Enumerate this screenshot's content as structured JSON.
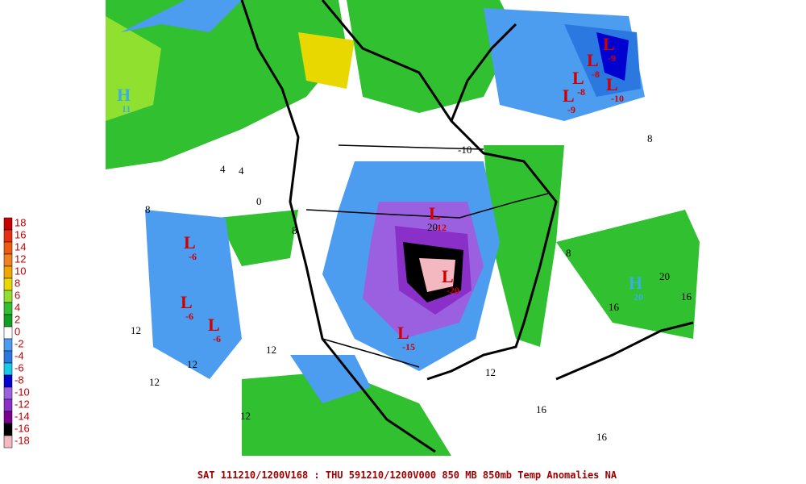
{
  "colorbar": {
    "levels": [
      18,
      16,
      14,
      12,
      10,
      8,
      6,
      4,
      2,
      0,
      -2,
      -4,
      -6,
      -8,
      -10,
      -12,
      -14,
      -16,
      -18
    ],
    "colors": [
      "#c80000",
      "#e83010",
      "#f05a10",
      "#f08020",
      "#f0a800",
      "#e8d800",
      "#90e030",
      "#30c030",
      "#10a020",
      "#ffffff",
      "#4c9cf0",
      "#2a78e0",
      "#18c8e8",
      "#0000d0",
      "#9a60e0",
      "#8a30c8",
      "#7a0090",
      "#000000",
      "#f4b8c0"
    ]
  },
  "pressure_centers": [
    {
      "symbol": "L",
      "value": -9
    },
    {
      "symbol": "L",
      "value": -8
    },
    {
      "symbol": "L",
      "value": -8
    },
    {
      "symbol": "L",
      "value": -10
    },
    {
      "symbol": "L",
      "value": -9
    },
    {
      "symbol": "L",
      "value": -6
    },
    {
      "symbol": "L",
      "value": -6
    },
    {
      "symbol": "L",
      "value": -6
    },
    {
      "symbol": "L",
      "value": -12
    },
    {
      "symbol": "L",
      "value": -20
    },
    {
      "symbol": "L",
      "value": -15
    },
    {
      "symbol": "H",
      "value": 11
    },
    {
      "symbol": "H",
      "value": 20
    }
  ],
  "contour_labels": [
    12,
    12,
    12,
    12,
    12,
    12,
    16,
    16,
    16,
    16,
    8,
    8,
    8,
    8,
    4,
    4,
    0,
    -10,
    20,
    20
  ],
  "footer": "SAT 111210/1200V168 : THU 591210/1200V000  850 MB 850mb Temp Anomalies NA"
}
